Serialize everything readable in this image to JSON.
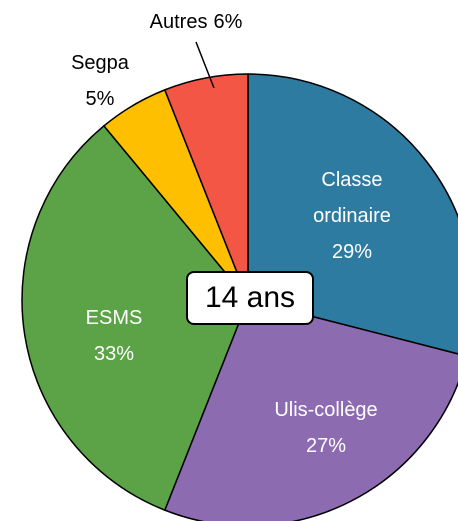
{
  "chart_data": {
    "type": "pie",
    "categories": [
      "Classe ordinaire",
      "Ulis-collège",
      "ESMS",
      "Segpa",
      "Autres"
    ],
    "values": [
      29,
      27,
      33,
      5,
      6
    ],
    "value_labels": [
      "29%",
      "27%",
      "33%",
      "5%",
      "6%"
    ],
    "colors": [
      "#2e7ba1",
      "#8d6bb1",
      "#5ba346",
      "#fdbf00",
      "#f45646"
    ],
    "center_label": "14 ans"
  }
}
